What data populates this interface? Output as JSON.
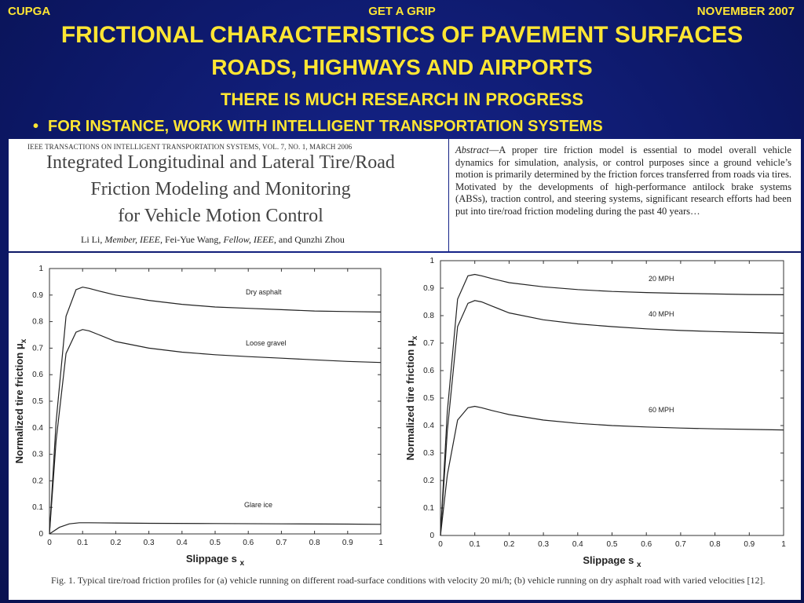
{
  "header": {
    "left": "CUPGA",
    "center": "GET A GRIP",
    "right": "NOVEMBER 2007"
  },
  "title": {
    "line1": "FRICTIONAL CHARACTERISTICS OF PAVEMENT SURFACES",
    "line2": "ROADS, HIGHWAYS AND AIRPORTS",
    "line3": "THERE IS MUCH RESEARCH IN PROGRESS"
  },
  "bullet": {
    "dot": "•",
    "text": "FOR INSTANCE, WORK WITH INTELLIGENT TRANSPORTATION SYSTEMS"
  },
  "paper": {
    "journal": "IEEE TRANSACTIONS ON INTELLIGENT TRANSPORTATION SYSTEMS, VOL. 7, NO. 1, MARCH 2006",
    "title_lines": [
      "Integrated Longitudinal and Lateral Tire/Road",
      "Friction Modeling and Monitoring",
      "for Vehicle Motion Control"
    ],
    "authors_a": "Li Li, ",
    "authors_b": "Member, IEEE",
    "authors_c": ", Fei-Yue Wang, ",
    "authors_d": "Fellow, IEEE",
    "authors_e": ", and Qunzhi Zhou",
    "abstract_label": "Abstract",
    "abstract_text": "—A proper tire friction model is essential to model overall vehicle dynamics for simulation, analysis, or control purposes since a ground vehicle’s motion is primarily determined by the friction forces transferred from roads via tires. Motivated by the developments of high-performance antilock brake systems (ABSs), traction control, and steering systems, significant research efforts had been put into tire/road friction modeling during the past 40 years…",
    "caption": "Fig. 1.    Typical tire/road friction profiles for (a) vehicle running on different road-surface conditions with velocity 20 mi/h; (b) vehicle running on dry asphalt road with varied velocities [12]."
  },
  "chart_data": [
    {
      "type": "line",
      "xlabel": "Slippage s",
      "xlabel_sub": "x",
      "ylabel": "Normalized tire friction μ",
      "ylabel_sub": "x",
      "xlim": [
        0,
        1
      ],
      "ylim": [
        0,
        1
      ],
      "xticks": [
        "0",
        "0.1",
        "0.2",
        "0.3",
        "0.4",
        "0.5",
        "0.6",
        "0.7",
        "0.8",
        "0.9",
        "1"
      ],
      "yticks": [
        "0",
        "0.1",
        "0.2",
        "0.3",
        "0.4",
        "0.5",
        "0.6",
        "0.7",
        "0.8",
        "0.9",
        "1"
      ],
      "series": [
        {
          "name": "Dry asphalt",
          "x": [
            0,
            0.02,
            0.05,
            0.08,
            0.1,
            0.12,
            0.15,
            0.2,
            0.3,
            0.4,
            0.5,
            0.6,
            0.7,
            0.8,
            0.9,
            1.0
          ],
          "y": [
            0,
            0.42,
            0.82,
            0.92,
            0.93,
            0.925,
            0.915,
            0.9,
            0.88,
            0.865,
            0.855,
            0.85,
            0.845,
            0.84,
            0.838,
            0.836
          ]
        },
        {
          "name": "Loose gravel",
          "x": [
            0,
            0.02,
            0.05,
            0.08,
            0.1,
            0.12,
            0.15,
            0.2,
            0.3,
            0.4,
            0.5,
            0.6,
            0.7,
            0.8,
            0.9,
            1.0
          ],
          "y": [
            0,
            0.35,
            0.68,
            0.76,
            0.77,
            0.765,
            0.75,
            0.725,
            0.7,
            0.685,
            0.675,
            0.668,
            0.662,
            0.656,
            0.65,
            0.646
          ]
        },
        {
          "name": "Glare ice",
          "x": [
            0,
            0.03,
            0.06,
            0.09,
            0.12,
            0.2,
            0.3,
            0.5,
            0.7,
            0.9,
            1.0
          ],
          "y": [
            0,
            0.025,
            0.038,
            0.042,
            0.042,
            0.041,
            0.04,
            0.039,
            0.038,
            0.037,
            0.036
          ]
        }
      ]
    },
    {
      "type": "line",
      "xlabel": "Slippage s",
      "xlabel_sub": "x",
      "ylabel": "Normalized tire friction μ",
      "ylabel_sub": "x",
      "xlim": [
        0,
        1
      ],
      "ylim": [
        0,
        1
      ],
      "xticks": [
        "0",
        "0.1",
        "0.2",
        "0.3",
        "0.4",
        "0.5",
        "0.6",
        "0.7",
        "0.8",
        "0.9",
        "1"
      ],
      "yticks": [
        "0",
        "0.1",
        "0.2",
        "0.3",
        "0.4",
        "0.5",
        "0.6",
        "0.7",
        "0.8",
        "0.9",
        "1"
      ],
      "series": [
        {
          "name": "20 MPH",
          "x": [
            0,
            0.02,
            0.05,
            0.08,
            0.1,
            0.12,
            0.15,
            0.2,
            0.3,
            0.4,
            0.5,
            0.6,
            0.7,
            0.8,
            0.9,
            1.0
          ],
          "y": [
            0,
            0.45,
            0.86,
            0.945,
            0.95,
            0.945,
            0.935,
            0.92,
            0.905,
            0.895,
            0.888,
            0.884,
            0.881,
            0.879,
            0.877,
            0.876
          ]
        },
        {
          "name": "40 MPH",
          "x": [
            0,
            0.02,
            0.05,
            0.08,
            0.1,
            0.12,
            0.15,
            0.2,
            0.3,
            0.4,
            0.5,
            0.6,
            0.7,
            0.8,
            0.9,
            1.0
          ],
          "y": [
            0,
            0.38,
            0.76,
            0.845,
            0.855,
            0.85,
            0.835,
            0.81,
            0.785,
            0.77,
            0.76,
            0.752,
            0.746,
            0.742,
            0.739,
            0.736
          ]
        },
        {
          "name": "60 MPH",
          "x": [
            0,
            0.02,
            0.05,
            0.08,
            0.1,
            0.12,
            0.15,
            0.2,
            0.3,
            0.4,
            0.5,
            0.6,
            0.7,
            0.8,
            0.9,
            1.0
          ],
          "y": [
            0,
            0.22,
            0.42,
            0.465,
            0.47,
            0.465,
            0.455,
            0.44,
            0.42,
            0.408,
            0.4,
            0.395,
            0.391,
            0.388,
            0.386,
            0.384
          ]
        }
      ]
    }
  ]
}
